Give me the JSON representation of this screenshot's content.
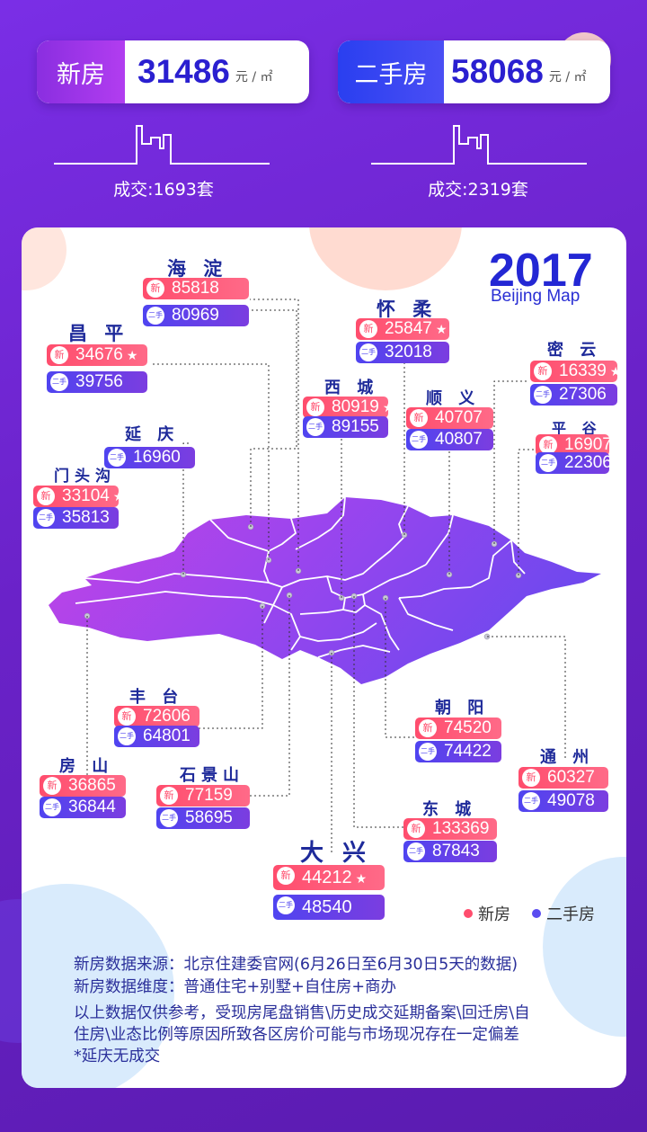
{
  "summary": {
    "new_house": {
      "label": "新房",
      "price": "31486",
      "unit": "元 / ㎡",
      "deals": "成交:1693套"
    },
    "second_hand": {
      "label": "二手房",
      "price": "58068",
      "unit": "元 / ㎡",
      "deals": "成交:2319套"
    }
  },
  "title": {
    "year": "2017",
    "subtitle": "Beijing Map"
  },
  "tags": {
    "new": "新",
    "old": "二手"
  },
  "districts": [
    {
      "id": "haidian",
      "name": "海 淀",
      "new": "85818",
      "old": "80969",
      "star": false
    },
    {
      "id": "changping",
      "name": "昌 平",
      "new": "34676",
      "old": "39756",
      "star": true
    },
    {
      "id": "huairou",
      "name": "怀 柔",
      "new": "25847",
      "old": "32018",
      "star": true
    },
    {
      "id": "miyun",
      "name": "密 云",
      "new": "16339",
      "old": "27306",
      "star": true
    },
    {
      "id": "xicheng",
      "name": "西 城",
      "new": "80919",
      "old": "89155",
      "star": true
    },
    {
      "id": "shunyi",
      "name": "顺 义",
      "new": "40707",
      "old": "40807",
      "star": false
    },
    {
      "id": "pinggu",
      "name": "平 谷",
      "new": "16907",
      "old": "22306",
      "star": true
    },
    {
      "id": "yanqing",
      "name": "延 庆",
      "new": "",
      "old": "16960",
      "star": false
    },
    {
      "id": "mentougou",
      "name": "门头沟",
      "new": "33104",
      "old": "35813",
      "star": true
    },
    {
      "id": "fengtai",
      "name": "丰 台",
      "new": "72606",
      "old": "64801",
      "star": false
    },
    {
      "id": "fangshan",
      "name": "房 山",
      "new": "36865",
      "old": "36844",
      "star": false
    },
    {
      "id": "shijingshan",
      "name": "石景山",
      "new": "77159",
      "old": "58695",
      "star": false
    },
    {
      "id": "chaoyang",
      "name": "朝 阳",
      "new": "74520",
      "old": "74422",
      "star": false
    },
    {
      "id": "tongzhou",
      "name": "通 州",
      "new": "60327",
      "old": "49078",
      "star": false
    },
    {
      "id": "dongcheng",
      "name": "东 城",
      "new": "133369",
      "old": "87843",
      "star": false
    },
    {
      "id": "daxing",
      "name": "大 兴",
      "new": "44212",
      "old": "48540",
      "star": true
    }
  ],
  "legend": {
    "new": "新房",
    "old": "二手房"
  },
  "colors": {
    "new": "#ff4d6d",
    "old": "#4f44f0",
    "title": "#2327d4",
    "district_name": "#1e2a9a"
  },
  "notes": [
    "新房数据来源：北京住建委官网(6月26日至6月30日5天的数据)",
    "新房数据维度：普通住宅+别墅+自住房+商办",
    "以上数据仅供参考，受现房尾盘销售\\历史成交延期备案\\回迁房\\自",
    "住房\\业态比例等原因所致各区房价可能与市场现况存在一定偏差",
    "*延庆无成交"
  ]
}
